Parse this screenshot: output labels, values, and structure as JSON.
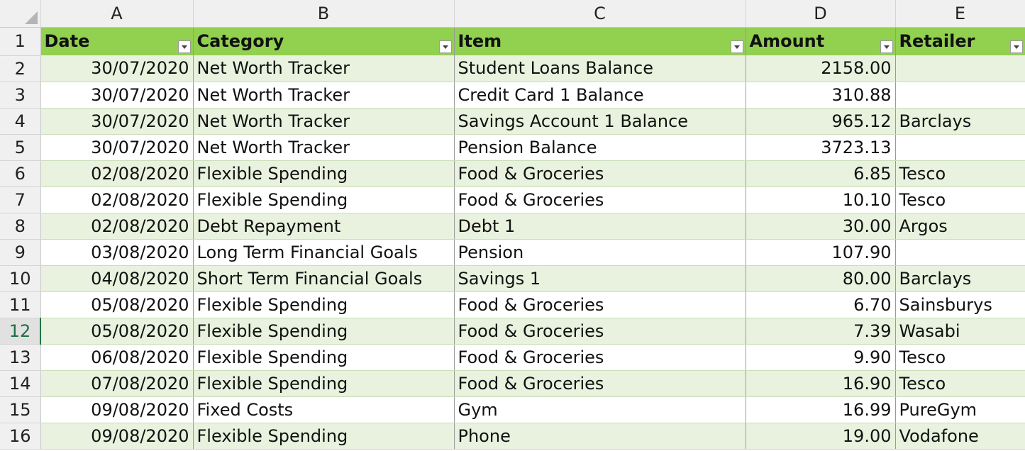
{
  "columns": [
    "A",
    "B",
    "C",
    "D",
    "E"
  ],
  "header_row_number": "1",
  "headers": [
    "Date",
    "Category",
    "Item",
    "Amount",
    "Retailer"
  ],
  "active_row": "12",
  "table_color": "#92d050",
  "rows": [
    {
      "n": "2",
      "date": "30/07/2020",
      "category": "Net Worth Tracker",
      "item": "Student Loans Balance",
      "amount": "2158.00",
      "retailer": ""
    },
    {
      "n": "3",
      "date": "30/07/2020",
      "category": "Net Worth Tracker",
      "item": "Credit Card 1 Balance",
      "amount": "310.88",
      "retailer": ""
    },
    {
      "n": "4",
      "date": "30/07/2020",
      "category": "Net Worth Tracker",
      "item": "Savings Account 1 Balance",
      "amount": "965.12",
      "retailer": "Barclays"
    },
    {
      "n": "5",
      "date": "30/07/2020",
      "category": "Net Worth Tracker",
      "item": "Pension Balance",
      "amount": "3723.13",
      "retailer": ""
    },
    {
      "n": "6",
      "date": "02/08/2020",
      "category": "Flexible Spending",
      "item": "Food & Groceries",
      "amount": "6.85",
      "retailer": "Tesco"
    },
    {
      "n": "7",
      "date": "02/08/2020",
      "category": "Flexible Spending",
      "item": "Food & Groceries",
      "amount": "10.10",
      "retailer": "Tesco"
    },
    {
      "n": "8",
      "date": "02/08/2020",
      "category": "Debt Repayment",
      "item": "Debt 1",
      "amount": "30.00",
      "retailer": "Argos"
    },
    {
      "n": "9",
      "date": "03/08/2020",
      "category": "Long Term Financial Goals",
      "item": "Pension",
      "amount": "107.90",
      "retailer": ""
    },
    {
      "n": "10",
      "date": "04/08/2020",
      "category": "Short Term Financial Goals",
      "item": "Savings 1",
      "amount": "80.00",
      "retailer": "Barclays"
    },
    {
      "n": "11",
      "date": "05/08/2020",
      "category": "Flexible Spending",
      "item": "Food & Groceries",
      "amount": "6.70",
      "retailer": "Sainsburys"
    },
    {
      "n": "12",
      "date": "05/08/2020",
      "category": "Flexible Spending",
      "item": "Food & Groceries",
      "amount": "7.39",
      "retailer": "Wasabi"
    },
    {
      "n": "13",
      "date": "06/08/2020",
      "category": "Flexible Spending",
      "item": "Food & Groceries",
      "amount": "9.90",
      "retailer": "Tesco"
    },
    {
      "n": "14",
      "date": "07/08/2020",
      "category": "Flexible Spending",
      "item": "Food & Groceries",
      "amount": "16.90",
      "retailer": "Tesco"
    },
    {
      "n": "15",
      "date": "09/08/2020",
      "category": "Fixed Costs",
      "item": "Gym",
      "amount": "16.99",
      "retailer": "PureGym"
    },
    {
      "n": "16",
      "date": "09/08/2020",
      "category": "Flexible Spending",
      "item": "Phone",
      "amount": "19.00",
      "retailer": "Vodafone"
    }
  ]
}
